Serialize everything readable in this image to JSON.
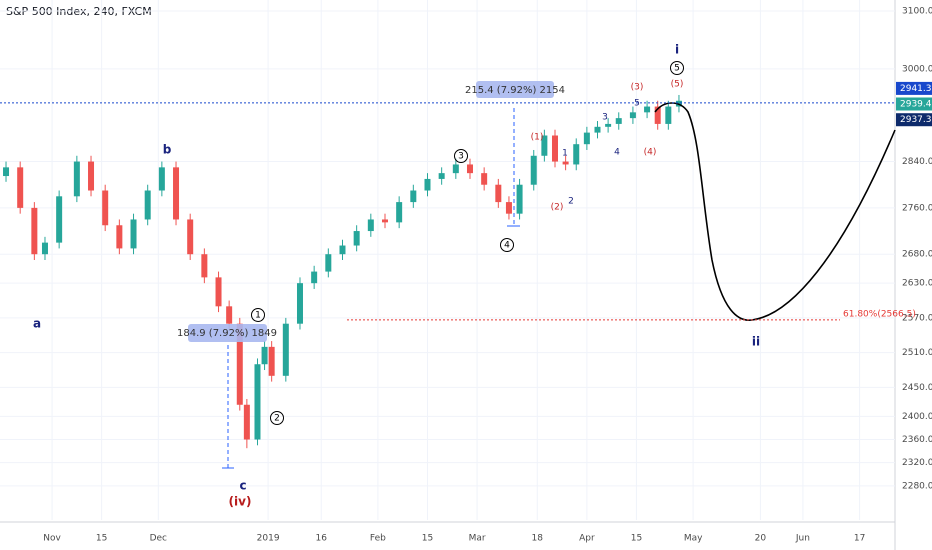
{
  "chart_data": {
    "type": "candlestick",
    "title": "S&P 500 Index, 240, FXCM",
    "x": [
      -13,
      -9,
      -5,
      -2,
      2,
      7,
      11,
      15,
      19,
      23,
      27,
      31,
      35,
      39,
      43,
      47,
      50,
      53,
      55,
      58,
      60,
      62,
      66,
      70,
      74,
      78,
      82,
      86,
      90,
      94,
      98,
      102,
      106,
      110,
      114,
      118,
      122,
      126,
      129,
      132,
      136,
      139,
      142,
      145,
      148,
      151,
      154,
      157,
      160,
      164,
      168,
      171,
      174,
      177
    ],
    "open": [
      2815,
      2830,
      2760,
      2680,
      2700,
      2780,
      2840,
      2790,
      2730,
      2690,
      2740,
      2790,
      2830,
      2740,
      2680,
      2640,
      2590,
      2560,
      2420,
      2360,
      2490,
      2520,
      2470,
      2560,
      2630,
      2650,
      2680,
      2695,
      2720,
      2740,
      2735,
      2770,
      2790,
      2810,
      2820,
      2835,
      2820,
      2800,
      2770,
      2750,
      2800,
      2850,
      2885,
      2840,
      2835,
      2870,
      2890,
      2900,
      2905,
      2915,
      2925,
      2935,
      2905,
      2935
    ],
    "high": [
      2840,
      2840,
      2770,
      2710,
      2790,
      2850,
      2850,
      2800,
      2740,
      2750,
      2800,
      2840,
      2840,
      2750,
      2690,
      2650,
      2600,
      2570,
      2430,
      2500,
      2530,
      2530,
      2570,
      2640,
      2660,
      2690,
      2705,
      2730,
      2750,
      2750,
      2780,
      2800,
      2820,
      2830,
      2845,
      2845,
      2830,
      2810,
      2780,
      2810,
      2860,
      2895,
      2895,
      2850,
      2880,
      2900,
      2910,
      2915,
      2925,
      2935,
      2945,
      2945,
      2945,
      2955
    ],
    "low": [
      2805,
      2750,
      2670,
      2670,
      2690,
      2770,
      2780,
      2720,
      2680,
      2680,
      2730,
      2780,
      2730,
      2670,
      2630,
      2580,
      2550,
      2410,
      2345,
      2350,
      2480,
      2460,
      2460,
      2550,
      2620,
      2640,
      2670,
      2685,
      2710,
      2725,
      2725,
      2760,
      2780,
      2800,
      2810,
      2810,
      2790,
      2760,
      2740,
      2740,
      2790,
      2840,
      2830,
      2825,
      2825,
      2860,
      2880,
      2890,
      2895,
      2905,
      2915,
      2895,
      2895,
      2925
    ],
    "close": [
      2830,
      2760,
      2680,
      2700,
      2780,
      2840,
      2790,
      2730,
      2690,
      2740,
      2790,
      2830,
      2740,
      2680,
      2640,
      2590,
      2560,
      2420,
      2360,
      2490,
      2520,
      2470,
      2560,
      2630,
      2650,
      2680,
      2695,
      2720,
      2740,
      2735,
      2770,
      2790,
      2810,
      2820,
      2835,
      2820,
      2800,
      2770,
      2750,
      2800,
      2850,
      2885,
      2840,
      2835,
      2870,
      2890,
      2900,
      2905,
      2915,
      2925,
      2935,
      2905,
      2935,
      2945
    ],
    "up_color": "#26a69a",
    "down_color": "#ef5350",
    "xlim": [
      -14.7,
      238
    ],
    "xticks": [
      {
        "value": 0,
        "label": "Nov"
      },
      {
        "value": 14,
        "label": "15"
      },
      {
        "value": 30,
        "label": "Dec"
      },
      {
        "value": 61,
        "label": "2019"
      },
      {
        "value": 76,
        "label": "16"
      },
      {
        "value": 92,
        "label": "Feb"
      },
      {
        "value": 106,
        "label": "15"
      },
      {
        "value": 120,
        "label": "Mar"
      },
      {
        "value": 137,
        "label": "18"
      },
      {
        "value": 151,
        "label": "Apr"
      },
      {
        "value": 165,
        "label": "15"
      },
      {
        "value": 181,
        "label": "May"
      },
      {
        "value": 200,
        "label": "20"
      },
      {
        "value": 212,
        "label": "Jun"
      },
      {
        "value": 228,
        "label": "17"
      }
    ],
    "ylim": [
      2221,
      3119
    ],
    "yticks": [
      {
        "value": 3100,
        "label": "3100.0"
      },
      {
        "value": 3000,
        "label": "3000.0"
      },
      {
        "value": 2840,
        "label": "2840.0"
      },
      {
        "value": 2760,
        "label": "2760.0"
      },
      {
        "value": 2680,
        "label": "2680.0"
      },
      {
        "value": 2630,
        "label": "2630.0"
      },
      {
        "value": 2570,
        "label": "2570.0"
      },
      {
        "value": 2510,
        "label": "2510.0"
      },
      {
        "value": 2450,
        "label": "2450.0"
      },
      {
        "value": 2400,
        "label": "2400.0"
      },
      {
        "value": 2360,
        "label": "2360.0"
      },
      {
        "value": 2320,
        "label": "2320.0"
      },
      {
        "value": 2280,
        "label": "2280.0"
      }
    ],
    "price_tags": [
      {
        "value": 2941.3,
        "label": "2941.3",
        "color": "#1848cc"
      },
      {
        "value": 2939.4,
        "label": "2939.4",
        "color": "#26a69a"
      },
      {
        "value": 2937.3,
        "label": "2937.3",
        "color": "#0d2a6b"
      }
    ],
    "fib_level": {
      "value": 2566.5,
      "label": "61.80%(2566.5)",
      "color": "#e53935"
    },
    "measures": [
      "215.4 (7.92%) 2154",
      "184.9 (7.92%) 1849"
    ],
    "annotations": [
      {
        "text": "i",
        "color": "#1a237e"
      },
      {
        "text": "5",
        "color": "#000000",
        "circled": true
      },
      {
        "text": "(5)",
        "color": "#c62828"
      },
      {
        "text": "(3)",
        "color": "#c62828"
      },
      {
        "text": "5",
        "color": "#1a237e"
      },
      {
        "text": "3",
        "color": "#1a237e"
      },
      {
        "text": "4",
        "color": "#1a237e"
      },
      {
        "text": "(4)",
        "color": "#c62828"
      },
      {
        "text": "(1)",
        "color": "#c62828"
      },
      {
        "text": "1",
        "color": "#1a237e"
      },
      {
        "text": "(2)",
        "color": "#c62828"
      },
      {
        "text": "2",
        "color": "#1a237e"
      },
      {
        "text": "3",
        "color": "#000000",
        "circled": true
      },
      {
        "text": "4",
        "color": "#000000",
        "circled": true
      },
      {
        "text": "b",
        "color": "#1a237e"
      },
      {
        "text": "a",
        "color": "#1a237e"
      },
      {
        "text": "1",
        "color": "#000000",
        "circled": true
      },
      {
        "text": "2",
        "color": "#000000",
        "circled": true
      },
      {
        "text": "c",
        "color": "#1a237e"
      },
      {
        "text": "(iv)",
        "color": "#b71c1c"
      },
      {
        "text": "ii",
        "color": "#1a237e"
      }
    ]
  }
}
